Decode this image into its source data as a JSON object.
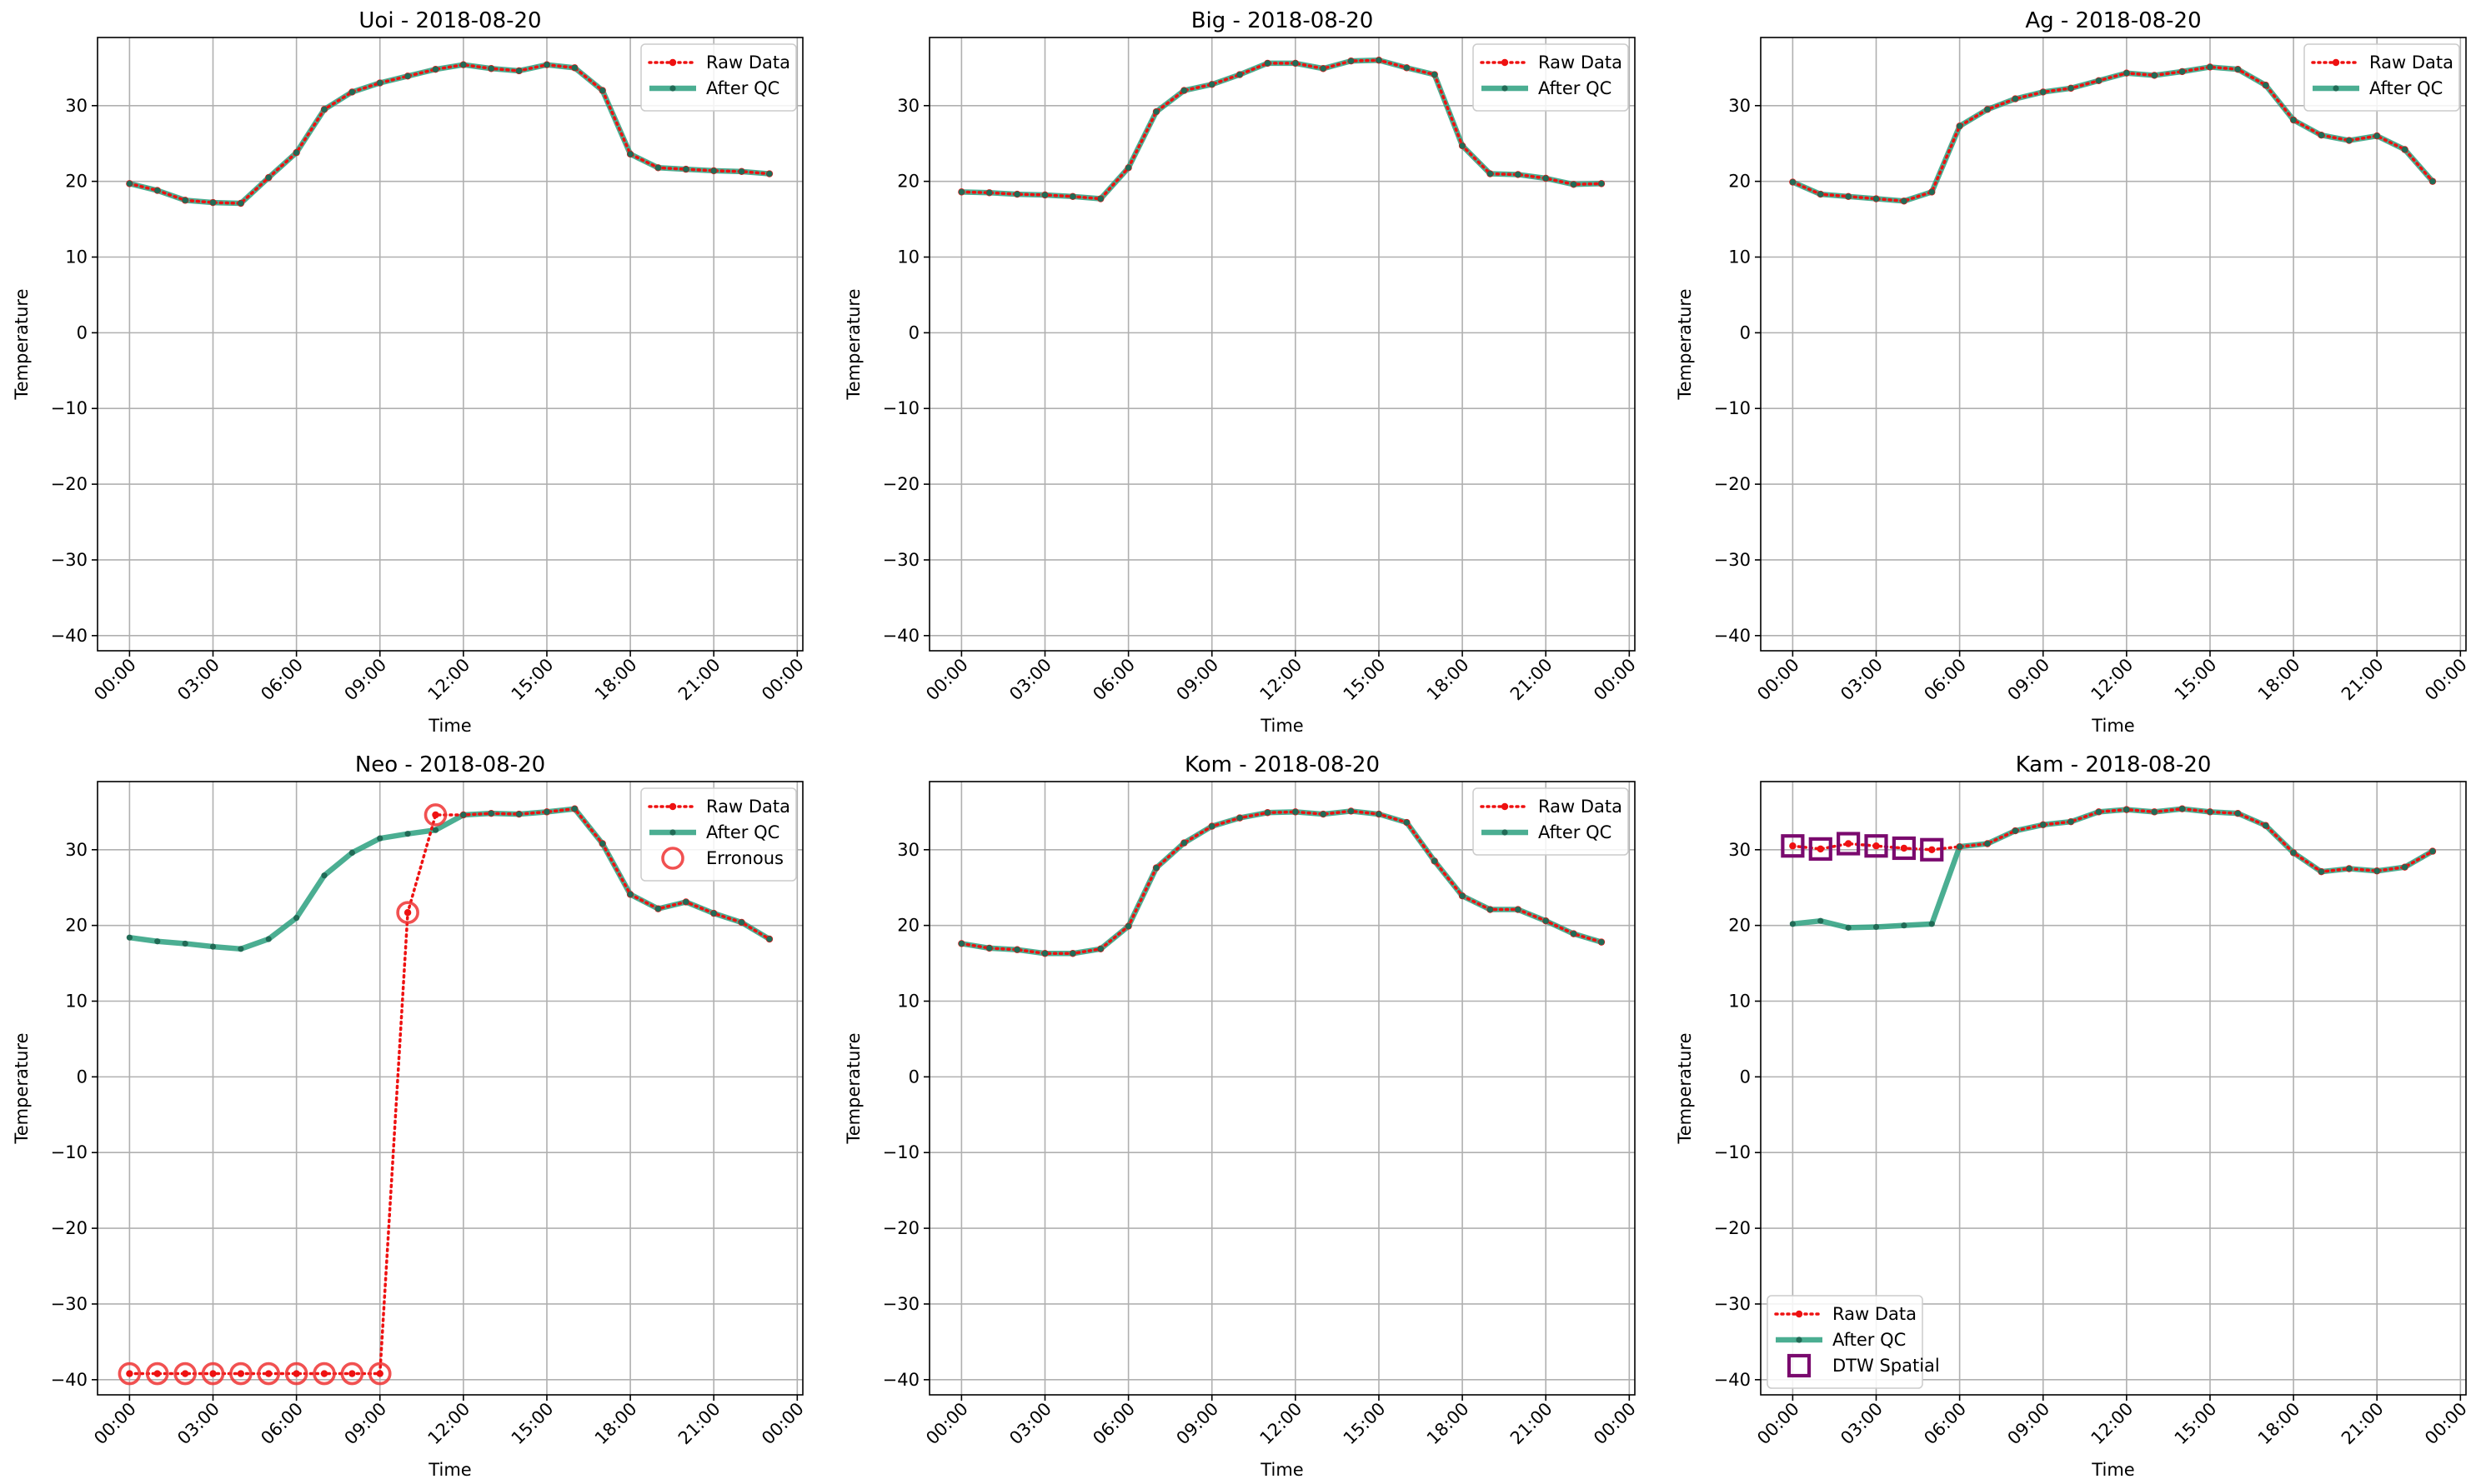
{
  "colors": {
    "raw": "#ee1111",
    "qc": "#2ca07f",
    "qc_marker": "#216b56",
    "erroneous": "#ee3333",
    "dtw": "#7a0a6e",
    "grid": "#b0b0b0"
  },
  "chart_data": [
    {
      "type": "line",
      "title": "Uoi - 2018-08-20",
      "xlabel": "Time",
      "ylabel": "Temperature",
      "ylim": [
        -42,
        39
      ],
      "yticks": [
        -40,
        -30,
        -20,
        -10,
        0,
        10,
        20,
        30
      ],
      "ytick_labels": [
        "−40",
        "−30",
        "−20",
        "−10",
        "0",
        "10",
        "20",
        "30"
      ],
      "xticks": [
        0,
        3,
        6,
        9,
        12,
        15,
        18,
        21,
        24
      ],
      "xtick_labels": [
        "00:00",
        "03:00",
        "06:00",
        "09:00",
        "12:00",
        "15:00",
        "18:00",
        "21:00",
        "00:00"
      ],
      "grid": true,
      "legend_position": "top-right",
      "legend": [
        {
          "key": "raw",
          "label": "Raw Data"
        },
        {
          "key": "qc",
          "label": "After QC"
        }
      ],
      "x": [
        0,
        1,
        2,
        3,
        4,
        5,
        6,
        7,
        8,
        9,
        10,
        11,
        12,
        13,
        14,
        15,
        16,
        17,
        18,
        19,
        20,
        21,
        22,
        23
      ],
      "series": [
        {
          "name": "Raw Data",
          "values": [
            19.7,
            18.8,
            17.5,
            17.2,
            17.1,
            20.5,
            23.8,
            29.5,
            31.8,
            33.0,
            33.9,
            34.8,
            35.4,
            34.9,
            34.6,
            35.4,
            35.0,
            32.0,
            23.6,
            21.8,
            21.6,
            21.4,
            21.3,
            21.0
          ]
        },
        {
          "name": "After QC",
          "values": [
            19.7,
            18.8,
            17.5,
            17.2,
            17.1,
            20.5,
            23.8,
            29.5,
            31.8,
            33.0,
            33.9,
            34.8,
            35.4,
            34.9,
            34.6,
            35.4,
            35.0,
            32.0,
            23.6,
            21.8,
            21.6,
            21.4,
            21.3,
            21.0
          ]
        }
      ]
    },
    {
      "type": "line",
      "title": "Big - 2018-08-20",
      "xlabel": "Time",
      "ylabel": "Temperature",
      "ylim": [
        -42,
        39
      ],
      "yticks": [
        -40,
        -30,
        -20,
        -10,
        0,
        10,
        20,
        30
      ],
      "ytick_labels": [
        "−40",
        "−30",
        "−20",
        "−10",
        "0",
        "10",
        "20",
        "30"
      ],
      "xticks": [
        0,
        3,
        6,
        9,
        12,
        15,
        18,
        21,
        24
      ],
      "xtick_labels": [
        "00:00",
        "03:00",
        "06:00",
        "09:00",
        "12:00",
        "15:00",
        "18:00",
        "21:00",
        "00:00"
      ],
      "grid": true,
      "legend_position": "top-right",
      "legend": [
        {
          "key": "raw",
          "label": "Raw Data"
        },
        {
          "key": "qc",
          "label": "After QC"
        }
      ],
      "x": [
        0,
        1,
        2,
        3,
        4,
        5,
        6,
        7,
        8,
        9,
        10,
        11,
        12,
        13,
        14,
        15,
        16,
        17,
        18,
        19,
        20,
        21,
        22,
        23
      ],
      "series": [
        {
          "name": "Raw Data",
          "values": [
            18.6,
            18.5,
            18.3,
            18.2,
            18.0,
            17.7,
            21.8,
            29.2,
            32.0,
            32.8,
            34.1,
            35.6,
            35.6,
            34.9,
            35.9,
            36.0,
            35.0,
            34.1,
            24.7,
            21.0,
            20.9,
            20.4,
            19.6,
            19.7
          ]
        },
        {
          "name": "After QC",
          "values": [
            18.6,
            18.5,
            18.3,
            18.2,
            18.0,
            17.7,
            21.8,
            29.2,
            32.0,
            32.8,
            34.1,
            35.6,
            35.6,
            34.9,
            35.9,
            36.0,
            35.0,
            34.1,
            24.7,
            21.0,
            20.9,
            20.4,
            19.6,
            19.7
          ]
        }
      ]
    },
    {
      "type": "line",
      "title": "Ag - 2018-08-20",
      "xlabel": "Time",
      "ylabel": "Temperature",
      "ylim": [
        -42,
        39
      ],
      "yticks": [
        -40,
        -30,
        -20,
        -10,
        0,
        10,
        20,
        30
      ],
      "ytick_labels": [
        "−40",
        "−30",
        "−20",
        "−10",
        "0",
        "10",
        "20",
        "30"
      ],
      "xticks": [
        0,
        3,
        6,
        9,
        12,
        15,
        18,
        21,
        24
      ],
      "xtick_labels": [
        "00:00",
        "03:00",
        "06:00",
        "09:00",
        "12:00",
        "15:00",
        "18:00",
        "21:00",
        "00:00"
      ],
      "grid": true,
      "legend_position": "top-right",
      "legend": [
        {
          "key": "raw",
          "label": "Raw Data"
        },
        {
          "key": "qc",
          "label": "After QC"
        }
      ],
      "x": [
        0,
        1,
        2,
        3,
        4,
        5,
        6,
        7,
        8,
        9,
        10,
        11,
        12,
        13,
        14,
        15,
        16,
        17,
        18,
        19,
        20,
        21,
        22,
        23
      ],
      "series": [
        {
          "name": "Raw Data",
          "values": [
            19.9,
            18.3,
            18.0,
            17.7,
            17.4,
            18.6,
            27.3,
            29.5,
            30.9,
            31.8,
            32.3,
            33.3,
            34.3,
            34.0,
            34.5,
            35.1,
            34.8,
            32.7,
            28.1,
            26.1,
            25.4,
            26.0,
            24.2,
            20.0
          ]
        },
        {
          "name": "After QC",
          "values": [
            19.9,
            18.3,
            18.0,
            17.7,
            17.4,
            18.6,
            27.3,
            29.5,
            30.9,
            31.8,
            32.3,
            33.3,
            34.3,
            34.0,
            34.5,
            35.1,
            34.8,
            32.7,
            28.1,
            26.1,
            25.4,
            26.0,
            24.2,
            20.0
          ]
        }
      ]
    },
    {
      "type": "line",
      "title": "Neo - 2018-08-20",
      "xlabel": "Time",
      "ylabel": "Temperature",
      "ylim": [
        -42,
        39
      ],
      "yticks": [
        -40,
        -30,
        -20,
        -10,
        0,
        10,
        20,
        30
      ],
      "ytick_labels": [
        "−40",
        "−30",
        "−20",
        "−10",
        "0",
        "10",
        "20",
        "30"
      ],
      "xticks": [
        0,
        3,
        6,
        9,
        12,
        15,
        18,
        21,
        24
      ],
      "xtick_labels": [
        "00:00",
        "03:00",
        "06:00",
        "09:00",
        "12:00",
        "15:00",
        "18:00",
        "21:00",
        "00:00"
      ],
      "grid": true,
      "legend_position": "top-right",
      "legend": [
        {
          "key": "raw",
          "label": "Raw Data"
        },
        {
          "key": "qc",
          "label": "After QC"
        },
        {
          "key": "err",
          "label": "Erronous"
        }
      ],
      "x": [
        0,
        1,
        2,
        3,
        4,
        5,
        6,
        7,
        8,
        9,
        10,
        11,
        12,
        13,
        14,
        15,
        16,
        17,
        18,
        19,
        20,
        21,
        22,
        23
      ],
      "series": [
        {
          "name": "Raw Data",
          "values": [
            -39.2,
            -39.2,
            -39.2,
            -39.2,
            -39.2,
            -39.2,
            -39.2,
            -39.2,
            -39.2,
            -39.2,
            21.7,
            34.6,
            34.6,
            34.8,
            34.7,
            35.0,
            35.4,
            30.8,
            24.1,
            22.2,
            23.1,
            21.6,
            20.4,
            18.2
          ]
        },
        {
          "name": "After QC",
          "values": [
            18.4,
            17.9,
            17.6,
            17.2,
            16.9,
            18.2,
            21.0,
            26.6,
            29.6,
            31.5,
            32.1,
            32.6,
            34.6,
            34.8,
            34.7,
            35.0,
            35.4,
            30.8,
            24.1,
            22.2,
            23.1,
            21.6,
            20.4,
            18.2
          ]
        }
      ],
      "erroneous": {
        "x": [
          0,
          1,
          2,
          3,
          4,
          5,
          6,
          7,
          8,
          9,
          10,
          11
        ],
        "values": [
          -39.2,
          -39.2,
          -39.2,
          -39.2,
          -39.2,
          -39.2,
          -39.2,
          -39.2,
          -39.2,
          -39.2,
          21.7,
          34.6
        ]
      }
    },
    {
      "type": "line",
      "title": "Kom - 2018-08-20",
      "xlabel": "Time",
      "ylabel": "Temperature",
      "ylim": [
        -42,
        39
      ],
      "yticks": [
        -40,
        -30,
        -20,
        -10,
        0,
        10,
        20,
        30
      ],
      "ytick_labels": [
        "−40",
        "−30",
        "−20",
        "−10",
        "0",
        "10",
        "20",
        "30"
      ],
      "xticks": [
        0,
        3,
        6,
        9,
        12,
        15,
        18,
        21,
        24
      ],
      "xtick_labels": [
        "00:00",
        "03:00",
        "06:00",
        "09:00",
        "12:00",
        "15:00",
        "18:00",
        "21:00",
        "00:00"
      ],
      "grid": true,
      "legend_position": "top-right",
      "legend": [
        {
          "key": "raw",
          "label": "Raw Data"
        },
        {
          "key": "qc",
          "label": "After QC"
        }
      ],
      "x": [
        0,
        1,
        2,
        3,
        4,
        5,
        6,
        7,
        8,
        9,
        10,
        11,
        12,
        13,
        14,
        15,
        16,
        17,
        18,
        19,
        20,
        21,
        22,
        23
      ],
      "series": [
        {
          "name": "Raw Data",
          "values": [
            17.6,
            17.0,
            16.8,
            16.3,
            16.3,
            16.9,
            19.9,
            27.6,
            30.9,
            33.1,
            34.2,
            34.9,
            35.0,
            34.7,
            35.1,
            34.7,
            33.6,
            28.5,
            23.9,
            22.1,
            22.1,
            20.6,
            18.9,
            17.8
          ]
        },
        {
          "name": "After QC",
          "values": [
            17.6,
            17.0,
            16.8,
            16.3,
            16.3,
            16.9,
            19.9,
            27.6,
            30.9,
            33.1,
            34.2,
            34.9,
            35.0,
            34.7,
            35.1,
            34.7,
            33.6,
            28.5,
            23.9,
            22.1,
            22.1,
            20.6,
            18.9,
            17.8
          ]
        }
      ]
    },
    {
      "type": "line",
      "title": "Kam - 2018-08-20",
      "xlabel": "Time",
      "ylabel": "Temperature",
      "ylim": [
        -42,
        39
      ],
      "yticks": [
        -40,
        -30,
        -20,
        -10,
        0,
        10,
        20,
        30
      ],
      "ytick_labels": [
        "−40",
        "−30",
        "−20",
        "−10",
        "0",
        "10",
        "20",
        "30"
      ],
      "xticks": [
        0,
        3,
        6,
        9,
        12,
        15,
        18,
        21,
        24
      ],
      "xtick_labels": [
        "00:00",
        "03:00",
        "06:00",
        "09:00",
        "12:00",
        "15:00",
        "18:00",
        "21:00",
        "00:00"
      ],
      "grid": true,
      "legend_position": "bottom-left",
      "legend": [
        {
          "key": "raw",
          "label": "Raw Data"
        },
        {
          "key": "qc",
          "label": "After QC"
        },
        {
          "key": "dtw",
          "label": "DTW Spatial"
        }
      ],
      "x": [
        0,
        1,
        2,
        3,
        4,
        5,
        6,
        7,
        8,
        9,
        10,
        11,
        12,
        13,
        14,
        15,
        16,
        17,
        18,
        19,
        20,
        21,
        22,
        23
      ],
      "series": [
        {
          "name": "Raw Data",
          "values": [
            30.5,
            30.1,
            30.8,
            30.5,
            30.2,
            30.0,
            30.4,
            30.8,
            32.5,
            33.3,
            33.7,
            35.0,
            35.3,
            35.0,
            35.4,
            35.0,
            34.8,
            33.2,
            29.6,
            27.1,
            27.5,
            27.2,
            27.7,
            29.8
          ]
        },
        {
          "name": "After QC",
          "values": [
            20.2,
            20.6,
            19.7,
            19.8,
            20.0,
            20.2,
            30.4,
            30.8,
            32.5,
            33.3,
            33.7,
            35.0,
            35.3,
            35.0,
            35.4,
            35.0,
            34.8,
            33.2,
            29.6,
            27.1,
            27.5,
            27.2,
            27.7,
            29.8
          ]
        }
      ],
      "dtw_spatial": {
        "x": [
          0,
          1,
          2,
          3,
          4,
          5
        ],
        "values": [
          30.5,
          30.1,
          30.8,
          30.5,
          30.2,
          30.0
        ]
      }
    }
  ]
}
